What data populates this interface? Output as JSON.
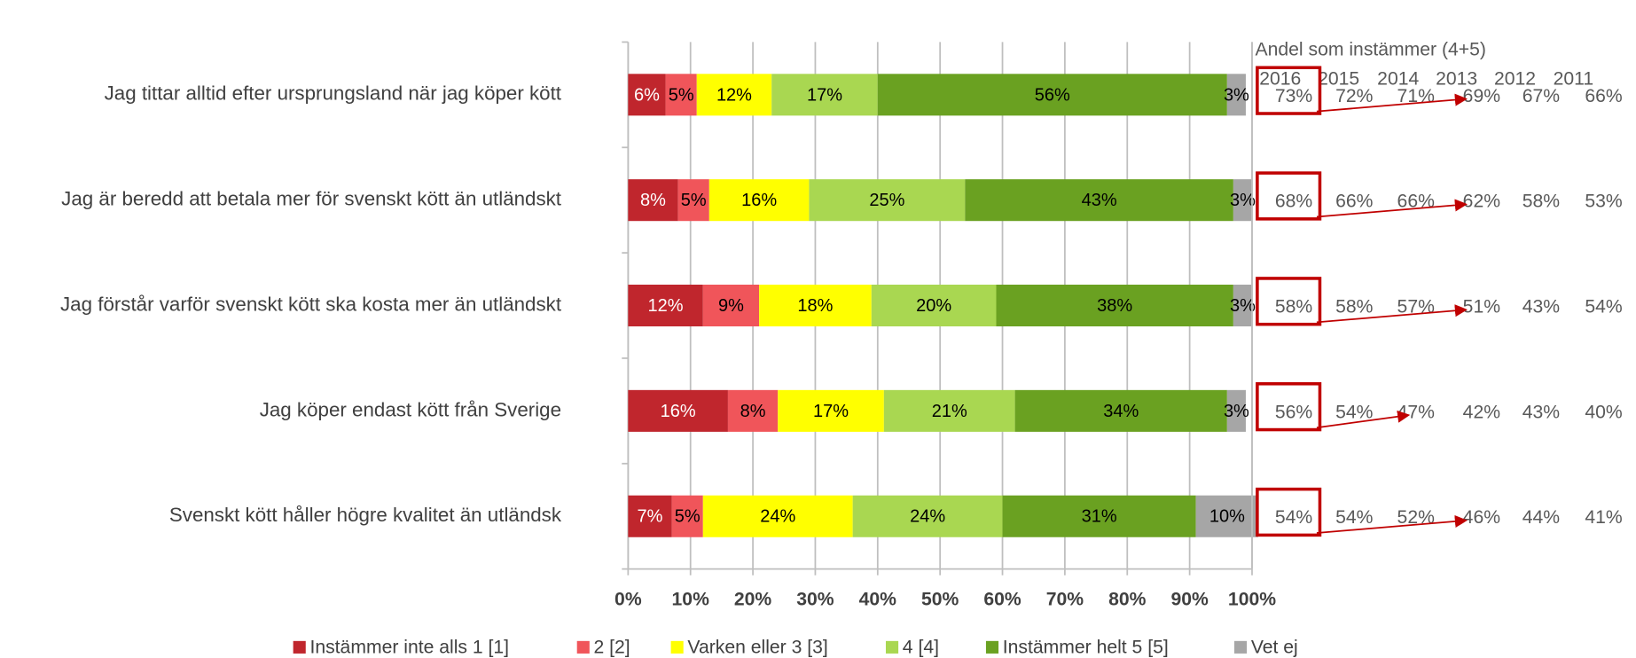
{
  "chart_data": {
    "type": "stacked_bar_horizontal",
    "categories": [
      "Jag tittar alltid efter ursprungsland när jag köper kött",
      "Jag är beredd att betala mer för svenskt kött än utländskt",
      "Jag förstår varför svenskt kött ska kosta mer än utländskt",
      "Jag köper endast kött från Sverige",
      "Svenskt kött håller högre kvalitet än utländsk"
    ],
    "series": [
      {
        "name": "Instämmer inte alls 1 [1]",
        "color": "#c0262d",
        "values": [
          6,
          8,
          12,
          16,
          7
        ],
        "value_labels": [
          "6%",
          "8%",
          "12%",
          "16%",
          "7%"
        ]
      },
      {
        "name": "2 [2]",
        "color": "#f0555a",
        "values": [
          5,
          5,
          9,
          8,
          5
        ],
        "value_labels": [
          "5%",
          "5%",
          "9%",
          "8%",
          "5%"
        ]
      },
      {
        "name": "Varken eller 3 [3]",
        "color": "#ffff00",
        "values": [
          12,
          16,
          18,
          17,
          24
        ],
        "value_labels": [
          "12%",
          "16%",
          "18%",
          "17%",
          "24%"
        ]
      },
      {
        "name": "4 [4]",
        "color": "#a9d751",
        "values": [
          17,
          25,
          20,
          21,
          24
        ],
        "value_labels": [
          "17%",
          "25%",
          "20%",
          "21%",
          "24%"
        ]
      },
      {
        "name": "Instämmer helt 5 [5]",
        "color": "#6aa121",
        "values": [
          56,
          43,
          38,
          34,
          31
        ],
        "value_labels": [
          "56%",
          "43%",
          "38%",
          "34%",
          "31%"
        ]
      },
      {
        "name": "Vet ej",
        "color": "#a6a6a6",
        "values": [
          3,
          3,
          3,
          3,
          10
        ],
        "value_labels": [
          "3%",
          "3%",
          "3%",
          "3%",
          "10%"
        ]
      }
    ],
    "xlim": [
      0,
      100
    ],
    "xticks": [
      {
        "value": 0,
        "label": "0%"
      },
      {
        "value": 10,
        "label": "10%"
      },
      {
        "value": 20,
        "label": "20%"
      },
      {
        "value": 30,
        "label": "30%"
      },
      {
        "value": 40,
        "label": "40%"
      },
      {
        "value": 50,
        "label": "50%"
      },
      {
        "value": 60,
        "label": "60%"
      },
      {
        "value": 70,
        "label": "70%"
      },
      {
        "value": 80,
        "label": "80%"
      },
      {
        "value": 90,
        "label": "90%"
      },
      {
        "value": 100,
        "label": "100%"
      }
    ],
    "grid": true,
    "legend": "bottom",
    "side_table": {
      "title": "Andel som instämmer (4+5)",
      "years": [
        "2016",
        "2015",
        "2014",
        "2013",
        "2012",
        "2011"
      ],
      "rows": [
        [
          "73%",
          "72%",
          "71%",
          "69%",
          "67%",
          "66%"
        ],
        [
          "68%",
          "66%",
          "66%",
          "62%",
          "58%",
          "53%"
        ],
        [
          "58%",
          "58%",
          "57%",
          "51%",
          "43%",
          "54%"
        ],
        [
          "56%",
          "54%",
          "47%",
          "42%",
          "43%",
          "40%"
        ],
        [
          "54%",
          "54%",
          "52%",
          "46%",
          "44%",
          "41%"
        ]
      ]
    }
  }
}
